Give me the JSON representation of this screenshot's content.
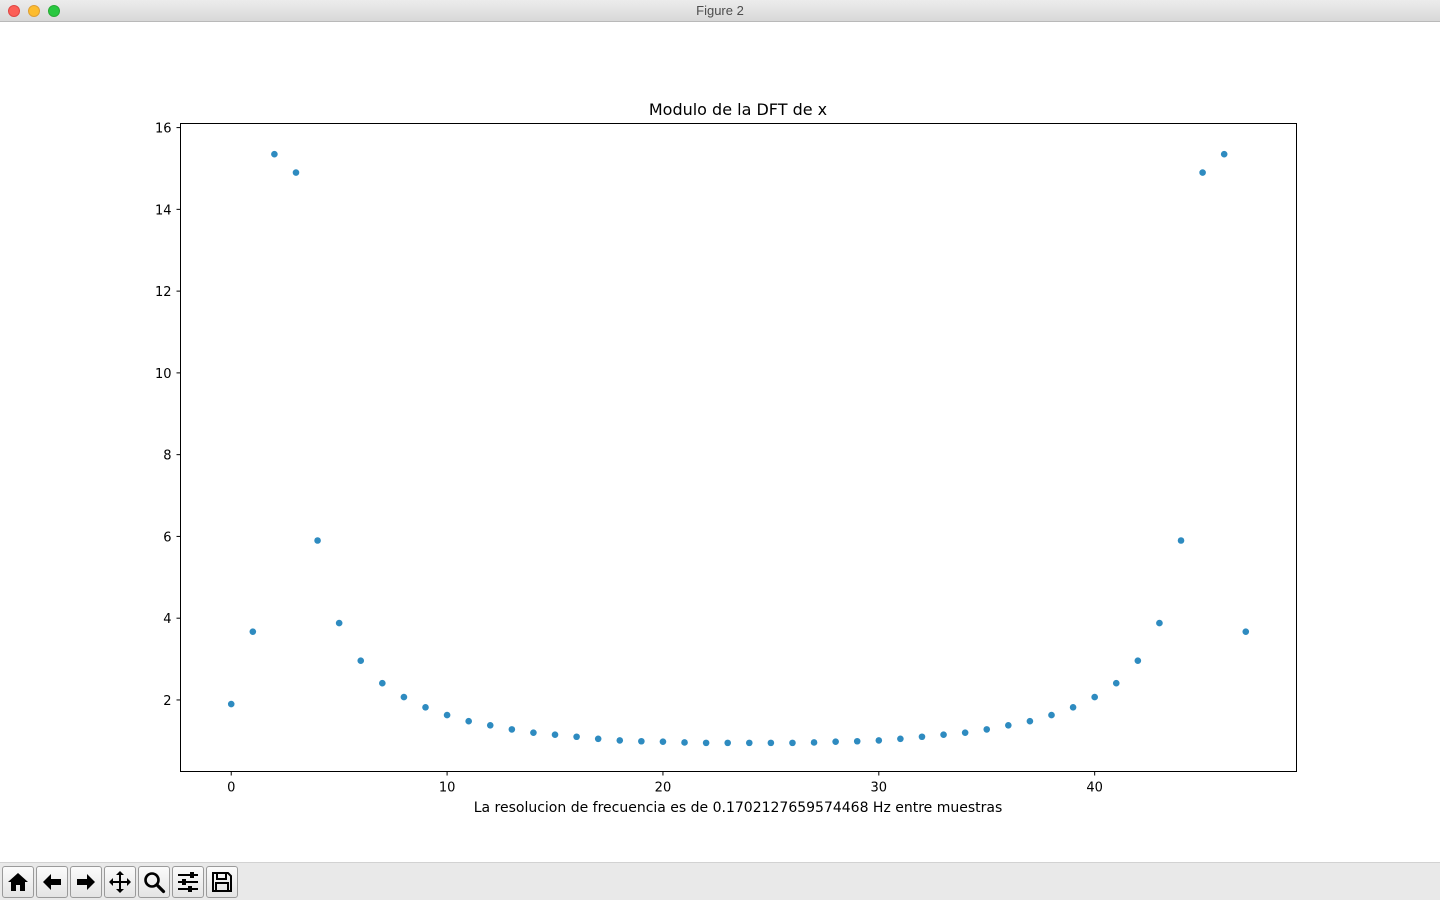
{
  "window": {
    "title": "Figure 2"
  },
  "toolbar": {
    "buttons": [
      {
        "name": "home-button",
        "icon": "home-icon"
      },
      {
        "name": "back-button",
        "icon": "arrow-left-icon"
      },
      {
        "name": "forward-button",
        "icon": "arrow-right-icon"
      },
      {
        "name": "pan-button",
        "icon": "move-icon"
      },
      {
        "name": "zoom-button",
        "icon": "search-icon"
      },
      {
        "name": "configure-subplots-button",
        "icon": "sliders-icon"
      },
      {
        "name": "save-button",
        "icon": "floppy-disk-icon"
      }
    ]
  },
  "chart_data": {
    "type": "scatter",
    "title": "Modulo de la DFT de x",
    "xlabel": "La resolucion de frecuencia es de 0.1702127659574468 Hz entre muestras",
    "ylabel": "",
    "xlim": [
      -2.35,
      49.35
    ],
    "ylim": [
      0.25,
      16.1
    ],
    "xticks": [
      0,
      10,
      20,
      30,
      40
    ],
    "yticks": [
      2,
      4,
      6,
      8,
      10,
      12,
      14,
      16
    ],
    "grid": false,
    "color": "#2e8bc0",
    "x": [
      0,
      1,
      2,
      3,
      4,
      5,
      6,
      7,
      8,
      9,
      10,
      11,
      12,
      13,
      14,
      15,
      16,
      17,
      18,
      19,
      20,
      21,
      22,
      23,
      24,
      25,
      26,
      27,
      28,
      29,
      30,
      31,
      32,
      33,
      34,
      35,
      36,
      37,
      38,
      39,
      40,
      41,
      42,
      43,
      44,
      45,
      46,
      47
    ],
    "values": [
      1.9,
      3.67,
      15.35,
      14.9,
      5.9,
      3.88,
      2.96,
      2.41,
      2.07,
      1.82,
      1.63,
      1.48,
      1.38,
      1.28,
      1.2,
      1.15,
      1.1,
      1.05,
      1.01,
      0.99,
      0.98,
      0.96,
      0.95,
      0.95,
      0.95,
      0.95,
      0.95,
      0.96,
      0.98,
      0.99,
      1.01,
      1.05,
      1.1,
      1.15,
      1.2,
      1.28,
      1.38,
      1.48,
      1.63,
      1.82,
      2.07,
      2.41,
      2.96,
      3.88,
      5.9,
      14.9,
      15.35,
      3.67
    ]
  }
}
